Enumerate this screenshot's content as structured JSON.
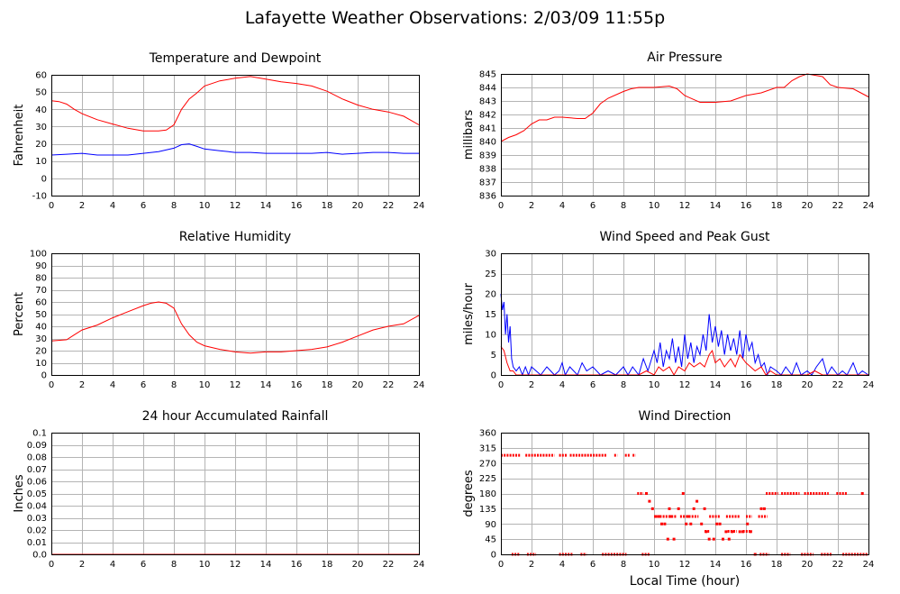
{
  "page": {
    "title": "Lafayette Weather Observations: 2/03/09 11:55p",
    "xlabel": "Local Time (hour)"
  },
  "colors": {
    "red": "#ff0000",
    "blue": "#0000ff",
    "grid": "#b4b4b4"
  },
  "chart_data": [
    {
      "id": "temp",
      "type": "line",
      "title": "Temperature and Dewpoint",
      "ylabel": "Fahrenheit",
      "xlim": [
        0,
        24
      ],
      "ylim": [
        -10,
        60
      ],
      "xticks": [
        0,
        2,
        4,
        6,
        8,
        10,
        12,
        14,
        16,
        18,
        20,
        22,
        24
      ],
      "yticks": [
        -10,
        0,
        10,
        20,
        30,
        40,
        50,
        60
      ],
      "grid": true,
      "series": [
        {
          "color": "#ff0000",
          "x": [
            0,
            0.5,
            1,
            1.5,
            2,
            3,
            4,
            5,
            6,
            7,
            7.5,
            8,
            8.5,
            9,
            9.5,
            10,
            11,
            12,
            13,
            14,
            15,
            16,
            17,
            18,
            19,
            20,
            21,
            22,
            23,
            24
          ],
          "y": [
            45,
            44.5,
            43,
            40,
            37.5,
            34,
            31.5,
            29,
            27.5,
            27.5,
            28,
            31,
            40,
            46,
            49.5,
            53.5,
            56.5,
            58,
            59,
            57.5,
            56,
            55,
            53.5,
            50.5,
            46,
            42.5,
            40,
            38.5,
            36,
            31
          ]
        },
        {
          "color": "#0000ff",
          "x": [
            0,
            1,
            2,
            3,
            4,
            5,
            6,
            7,
            8,
            8.5,
            9,
            9.5,
            10,
            11,
            12,
            13,
            14,
            15,
            16,
            17,
            18,
            19,
            20,
            21,
            22,
            23,
            24
          ],
          "y": [
            13.5,
            14,
            14.5,
            13.5,
            13.5,
            13.5,
            14.5,
            15.5,
            17.5,
            19.5,
            20,
            18.5,
            17,
            16,
            15,
            15,
            14.5,
            14.5,
            14.5,
            14.5,
            15,
            14,
            14.5,
            15,
            15,
            14.5,
            14.5
          ]
        }
      ]
    },
    {
      "id": "pressure",
      "type": "line",
      "title": "Air Pressure",
      "ylabel": "millibars",
      "xlim": [
        0,
        24
      ],
      "ylim": [
        836,
        845
      ],
      "xticks": [
        0,
        2,
        4,
        6,
        8,
        10,
        12,
        14,
        16,
        18,
        20,
        22,
        24
      ],
      "yticks": [
        836,
        837,
        838,
        839,
        840,
        841,
        842,
        843,
        844,
        845
      ],
      "grid": true,
      "series": [
        {
          "color": "#ff0000",
          "x": [
            0,
            0.5,
            1,
            1.5,
            2,
            2.5,
            3,
            3.5,
            4,
            5,
            5.5,
            6,
            6.5,
            7,
            8,
            8.5,
            9,
            10,
            11,
            11.5,
            12,
            13,
            14,
            15,
            16,
            16.5,
            17,
            18,
            18.5,
            19,
            19.5,
            20,
            21,
            21.5,
            22,
            23,
            23.5,
            24
          ],
          "y": [
            840,
            840.3,
            840.5,
            840.8,
            841.3,
            841.6,
            841.6,
            841.8,
            841.8,
            841.7,
            841.7,
            842.1,
            842.8,
            843.2,
            843.7,
            843.9,
            844,
            844,
            844.1,
            843.9,
            843.4,
            842.9,
            842.9,
            843,
            843.4,
            843.5,
            843.6,
            844,
            844,
            844.5,
            844.8,
            845,
            844.8,
            844.2,
            844,
            843.9,
            843.6,
            843.3
          ]
        }
      ]
    },
    {
      "id": "humidity",
      "type": "line",
      "title": "Relative Humidity",
      "ylabel": "Percent",
      "xlim": [
        0,
        24
      ],
      "ylim": [
        0,
        100
      ],
      "xticks": [
        0,
        2,
        4,
        6,
        8,
        10,
        12,
        14,
        16,
        18,
        20,
        22,
        24
      ],
      "yticks": [
        0,
        10,
        20,
        30,
        40,
        50,
        60,
        70,
        80,
        90,
        100
      ],
      "grid": true,
      "series": [
        {
          "color": "#ff0000",
          "x": [
            0,
            1,
            1.5,
            2,
            3,
            4,
            5,
            6,
            6.5,
            7,
            7.5,
            8,
            8.5,
            9,
            9.5,
            10,
            11,
            12,
            13,
            14,
            15,
            16,
            17,
            18,
            19,
            20,
            21,
            22,
            23,
            24
          ],
          "y": [
            28,
            29,
            33,
            37,
            41,
            47,
            52,
            57,
            59,
            60,
            59,
            55,
            42,
            33,
            27,
            24,
            21,
            19,
            18,
            19,
            19,
            20,
            21,
            23,
            27,
            32,
            37,
            40,
            42,
            49
          ]
        }
      ]
    },
    {
      "id": "wind",
      "type": "line",
      "title": "Wind Speed and Peak Gust",
      "ylabel": "miles/hour",
      "xlim": [
        0,
        24
      ],
      "ylim": [
        0,
        30
      ],
      "xticks": [
        0,
        2,
        4,
        6,
        8,
        10,
        12,
        14,
        16,
        18,
        20,
        22,
        24
      ],
      "yticks": [
        0,
        5,
        10,
        15,
        20,
        25,
        30
      ],
      "grid": true,
      "series": [
        {
          "color": "#0000ff",
          "x": [
            0,
            0.1,
            0.2,
            0.3,
            0.4,
            0.5,
            0.6,
            0.7,
            0.8,
            1,
            1.2,
            1.4,
            1.6,
            1.8,
            2,
            2.3,
            2.6,
            3,
            3.5,
            3.8,
            4,
            4.2,
            4.5,
            5,
            5.3,
            5.6,
            6,
            6.5,
            7,
            7.5,
            8,
            8.3,
            8.6,
            9,
            9.3,
            9.6,
            10,
            10.2,
            10.4,
            10.6,
            10.8,
            11,
            11.2,
            11.4,
            11.6,
            11.8,
            12,
            12.2,
            12.4,
            12.6,
            12.8,
            13,
            13.2,
            13.4,
            13.6,
            13.8,
            14,
            14.2,
            14.4,
            14.6,
            14.8,
            15,
            15.2,
            15.4,
            15.6,
            15.8,
            16,
            16.2,
            16.4,
            16.6,
            16.8,
            17,
            17.2,
            17.4,
            17.6,
            18,
            18.3,
            18.6,
            19,
            19.3,
            19.6,
            20,
            20.3,
            20.6,
            21,
            21.3,
            21.6,
            22,
            22.3,
            22.6,
            23,
            23.3,
            23.6,
            24
          ],
          "y": [
            20,
            16,
            18,
            10,
            15,
            8,
            12,
            4,
            2,
            1,
            2,
            0,
            2,
            0,
            2,
            1,
            0,
            2,
            0,
            1,
            3,
            0,
            2,
            0,
            3,
            1,
            2,
            0,
            1,
            0,
            2,
            0,
            2,
            0,
            4,
            1,
            6,
            3,
            8,
            2,
            6,
            4,
            9,
            3,
            7,
            2,
            10,
            4,
            8,
            3,
            7,
            5,
            10,
            6,
            15,
            8,
            12,
            7,
            11,
            5,
            10,
            6,
            9,
            5,
            11,
            4,
            10,
            6,
            8,
            3,
            5,
            2,
            3,
            0,
            2,
            1,
            0,
            2,
            0,
            3,
            0,
            1,
            0,
            2,
            4,
            0,
            2,
            0,
            1,
            0,
            3,
            0,
            1,
            0
          ]
        },
        {
          "color": "#ff0000",
          "x": [
            0,
            0.2,
            0.4,
            0.6,
            0.8,
            1,
            2,
            3,
            4,
            5,
            6,
            7,
            8,
            9,
            9.5,
            10,
            10.3,
            10.6,
            11,
            11.3,
            11.6,
            12,
            12.3,
            12.6,
            13,
            13.3,
            13.6,
            13.8,
            14,
            14.3,
            14.6,
            15,
            15.3,
            15.6,
            16,
            16.3,
            16.6,
            17,
            17.3,
            17.6,
            18,
            19,
            20,
            20.5,
            21,
            21.5,
            22,
            23,
            24
          ],
          "y": [
            7,
            6,
            3,
            1,
            1,
            0,
            0,
            0,
            0,
            0,
            0,
            0,
            0,
            0,
            1,
            0,
            2,
            1,
            2,
            0,
            2,
            1,
            3,
            2,
            3,
            2,
            5,
            6,
            3,
            4,
            2,
            4,
            2,
            5,
            3,
            2,
            1,
            2,
            0,
            1,
            0,
            0,
            0,
            1,
            0,
            0,
            0,
            0,
            0
          ]
        }
      ]
    },
    {
      "id": "rain",
      "type": "line",
      "title": "24 hour Accumulated Rainfall",
      "ylabel": "Inches",
      "xlim": [
        0,
        24
      ],
      "ylim": [
        0,
        0.1
      ],
      "xticks": [
        0,
        2,
        4,
        6,
        8,
        10,
        12,
        14,
        16,
        18,
        20,
        22,
        24
      ],
      "yticks": [
        0,
        0.01,
        0.02,
        0.03,
        0.04,
        0.05,
        0.06,
        0.07,
        0.08,
        0.09,
        0.1
      ],
      "ytick_labels": [
        "0.0",
        "0.01",
        "0.02",
        "0.03",
        "0.04",
        "0.05",
        "0.06",
        "0.07",
        "0.08",
        "0.09",
        "0.1"
      ],
      "grid": true,
      "series": [
        {
          "color": "#ff0000",
          "x": [
            0,
            24
          ],
          "y": [
            0,
            0
          ]
        }
      ]
    },
    {
      "id": "direction",
      "type": "scatter",
      "title": "Wind Direction",
      "ylabel": "degrees",
      "xlim": [
        0,
        24
      ],
      "ylim": [
        0,
        360
      ],
      "xticks": [
        0,
        2,
        4,
        6,
        8,
        10,
        12,
        14,
        16,
        18,
        20,
        22,
        24
      ],
      "yticks": [
        0,
        45,
        90,
        135,
        180,
        225,
        270,
        315,
        360
      ],
      "grid": true,
      "series": [
        {
          "color": "#ff0000",
          "segments": [
            {
              "y": 293,
              "x0": 0,
              "x1": 1.3
            },
            {
              "y": 293,
              "x0": 1.6,
              "x1": 3.5
            },
            {
              "y": 293,
              "x0": 3.8,
              "x1": 4.3
            },
            {
              "y": 293,
              "x0": 4.5,
              "x1": 6.9
            },
            {
              "y": 293,
              "x0": 7.4,
              "x1": 7.6
            },
            {
              "y": 293,
              "x0": 8.1,
              "x1": 8.4
            },
            {
              "y": 293,
              "x0": 8.6,
              "x1": 8.8
            },
            {
              "y": 0,
              "x0": 0.7,
              "x1": 1.2
            },
            {
              "y": 0,
              "x0": 1.7,
              "x1": 2.3
            },
            {
              "y": 0,
              "x0": 3.8,
              "x1": 4.7
            },
            {
              "y": 0,
              "x0": 5.2,
              "x1": 5.6
            },
            {
              "y": 0,
              "x0": 6.6,
              "x1": 8.2
            },
            {
              "y": 0,
              "x0": 9.2,
              "x1": 9.7
            },
            {
              "y": 180,
              "x0": 8.9,
              "x1": 9.3
            },
            {
              "y": 180,
              "x0": 17.3,
              "x1": 18.1
            },
            {
              "y": 180,
              "x0": 18.3,
              "x1": 19.5
            },
            {
              "y": 180,
              "x0": 19.8,
              "x1": 21.4
            },
            {
              "y": 180,
              "x0": 21.9,
              "x1": 22.6
            },
            {
              "y": 112,
              "x0": 10,
              "x1": 11.5
            },
            {
              "y": 112,
              "x0": 11.7,
              "x1": 12.9
            },
            {
              "y": 112,
              "x0": 13.6,
              "x1": 14.3
            },
            {
              "y": 112,
              "x0": 14.7,
              "x1": 15.6
            },
            {
              "y": 112,
              "x0": 16,
              "x1": 16.4
            },
            {
              "y": 112,
              "x0": 16.8,
              "x1": 17.4
            },
            {
              "y": 68,
              "x0": 13.3,
              "x1": 13.6
            },
            {
              "y": 68,
              "x0": 14.8,
              "x1": 15.4
            },
            {
              "y": 68,
              "x0": 15.8,
              "x1": 16.4
            },
            {
              "y": 0,
              "x0": 16.9,
              "x1": 17.5
            },
            {
              "y": 0,
              "x0": 18.3,
              "x1": 18.9
            },
            {
              "y": 0,
              "x0": 19.6,
              "x1": 20.4
            },
            {
              "y": 0,
              "x0": 20.9,
              "x1": 21.6
            },
            {
              "y": 0,
              "x0": 22.3,
              "x1": 24
            }
          ],
          "points": [
            [
              9.5,
              180
            ],
            [
              9.7,
              157
            ],
            [
              9.9,
              135
            ],
            [
              10.1,
              112
            ],
            [
              10.3,
              112
            ],
            [
              10.5,
              90
            ],
            [
              10.7,
              90
            ],
            [
              10.9,
              45
            ],
            [
              11.1,
              112
            ],
            [
              11.3,
              45
            ],
            [
              11.6,
              135
            ],
            [
              11.9,
              180
            ],
            [
              12.1,
              90
            ],
            [
              12.4,
              90
            ],
            [
              12.6,
              135
            ],
            [
              12.8,
              157
            ],
            [
              13.1,
              90
            ],
            [
              13.4,
              67
            ],
            [
              13.6,
              45
            ],
            [
              13.9,
              45
            ],
            [
              14.1,
              90
            ],
            [
              14.3,
              90
            ],
            [
              14.5,
              45
            ],
            [
              14.7,
              67
            ],
            [
              14.9,
              45
            ],
            [
              15.1,
              67
            ],
            [
              15.6,
              67
            ],
            [
              15.8,
              67
            ],
            [
              16.1,
              90
            ],
            [
              16.3,
              67
            ],
            [
              16.6,
              0
            ],
            [
              17.0,
              135
            ],
            [
              17.2,
              135
            ],
            [
              12.2,
              112
            ],
            [
              13.3,
              135
            ],
            [
              11.0,
              135
            ],
            [
              23.6,
              180
            ]
          ]
        }
      ]
    }
  ]
}
